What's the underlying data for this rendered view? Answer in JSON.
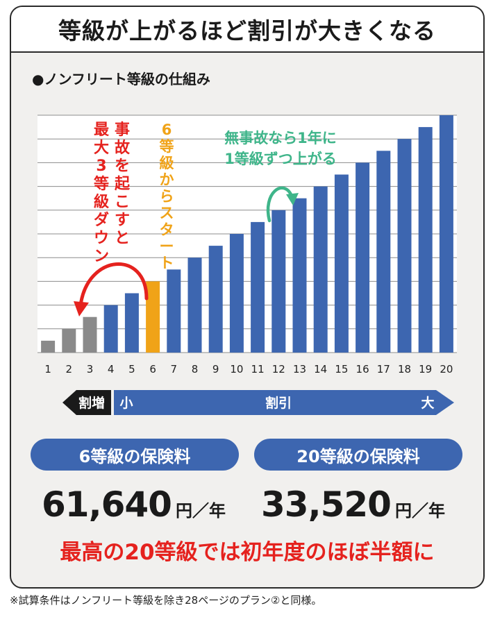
{
  "title": "等級が上がるほど割引が大きくなる",
  "subtitle": "●ノンフリート等級の仕組み",
  "chart_data": {
    "type": "bar",
    "categories": [
      "1",
      "2",
      "3",
      "4",
      "5",
      "6",
      "7",
      "8",
      "9",
      "10",
      "11",
      "12",
      "13",
      "14",
      "15",
      "16",
      "17",
      "18",
      "19",
      "20"
    ],
    "values": [
      1,
      2,
      3,
      4,
      5,
      6,
      7,
      8,
      9,
      10,
      11,
      12,
      13,
      14,
      15,
      16,
      17,
      18,
      19,
      20
    ],
    "ylim": [
      0,
      20
    ],
    "grid": true,
    "colors": {
      "surcharge": "#8a8a8a",
      "start": "#f0a318",
      "discount": "#3d66b0"
    },
    "annotations": [
      {
        "id": "accident",
        "text": "事故を起こすと最大3等級ダウン",
        "color": "#e5221e"
      },
      {
        "id": "start",
        "text": "6等級からスタート",
        "color": "#f0a318"
      },
      {
        "id": "noaccident_line1",
        "text": "無事故なら1年に",
        "color": "#3fb58a"
      },
      {
        "id": "noaccident_line2",
        "text": "1等級ずつ上がる",
        "color": "#3fb58a"
      }
    ]
  },
  "scale": {
    "left": "割増",
    "small": "小",
    "middle": "割引",
    "large": "大"
  },
  "premium6": {
    "label": "6等級の保険料",
    "amount": "61,640",
    "unit": "円／年"
  },
  "premium20": {
    "label": "20等級の保険料",
    "amount": "33,520",
    "unit": "円／年"
  },
  "conclusion": "最高の20等級では初年度のほぼ半額に",
  "footnote": "※試算条件はノンフリート等級を除き28ページのプラン②と同様。"
}
